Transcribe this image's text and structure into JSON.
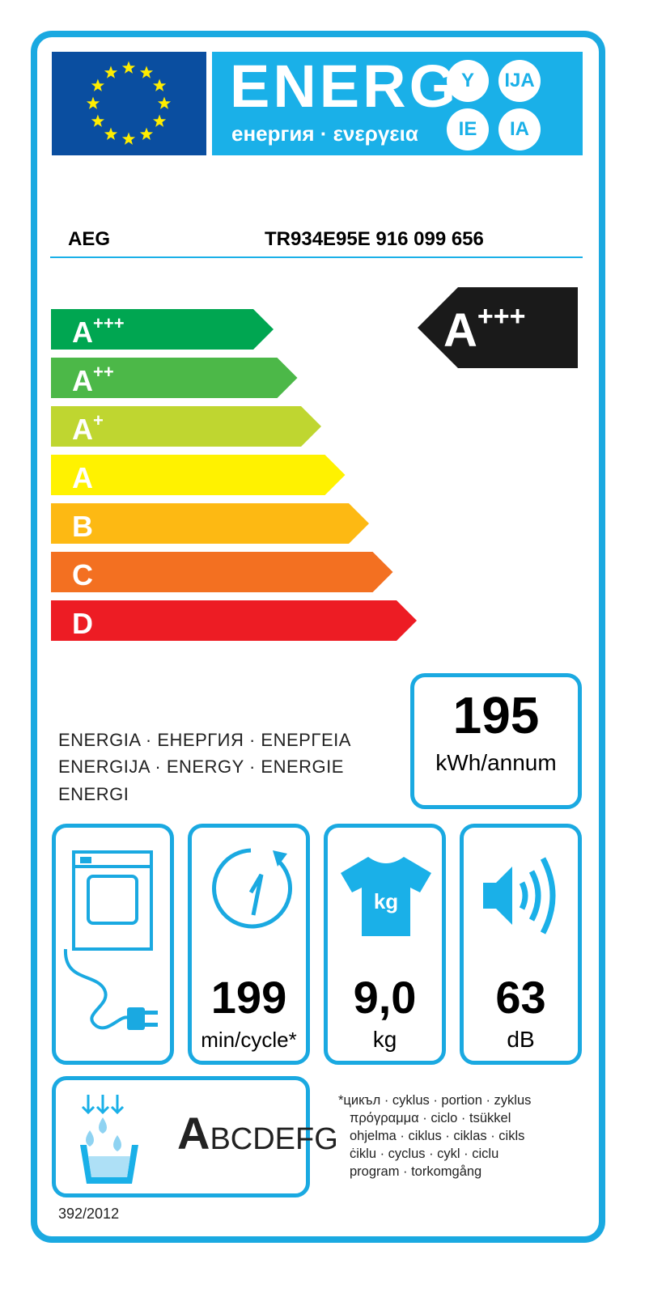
{
  "header": {
    "title": "ENERG",
    "subtitle": "енергия · ενεργεια",
    "suffixes": [
      "Y",
      "IJA",
      "IE",
      "IA"
    ]
  },
  "product": {
    "brand": "AEG",
    "model": "TR934E95E  916 099 656"
  },
  "scale": {
    "classes": [
      {
        "letter": "A",
        "sup": "+++",
        "color": "#00a651"
      },
      {
        "letter": "A",
        "sup": "++",
        "color": "#4cb848"
      },
      {
        "letter": "A",
        "sup": "+",
        "color": "#bfd630"
      },
      {
        "letter": "A",
        "sup": "",
        "color": "#fff200"
      },
      {
        "letter": "B",
        "sup": "",
        "color": "#fdb913"
      },
      {
        "letter": "C",
        "sup": "",
        "color": "#f37021"
      },
      {
        "letter": "D",
        "sup": "",
        "color": "#ed1c24"
      }
    ],
    "rating": {
      "letter": "A",
      "sup": "+++"
    }
  },
  "energy_words": [
    "ENERGIA · ЕНЕРГИЯ · ΕΝΕΡΓΕΙΑ",
    "ENERGIJA · ENERGY · ENERGIE",
    "ENERGI"
  ],
  "consumption": {
    "value": "195",
    "unit": "kWh/annum"
  },
  "specs": [
    {
      "icon": "dryer-plug-icon",
      "value": "",
      "unit": ""
    },
    {
      "icon": "clock-icon",
      "value": "199",
      "unit": "min/cycle*"
    },
    {
      "icon": "tshirt-kg-icon",
      "value": "9,0",
      "unit": "kg"
    },
    {
      "icon": "speaker-icon",
      "value": "63",
      "unit": "dB"
    }
  ],
  "condensation": {
    "icon": "water-drops-basin-icon",
    "scale_first": "A",
    "scale_rest": "BCDEFG"
  },
  "footnote": [
    "*цикъл · cyklus · portion · zyklus",
    "πρόγραμμα · ciclo · tsükkel",
    "ohjelma · ciklus · ciklas · cikls",
    "ċiklu · cyclus · cykl · ciclu",
    "program · torkomgång"
  ],
  "regulation": "392/2012",
  "colors": {
    "frame": "#1aa9e1",
    "flag": "#0a4ea0",
    "banner": "#1ab0e8",
    "star": "#ffed00",
    "indicator": "#1a1a1a"
  }
}
